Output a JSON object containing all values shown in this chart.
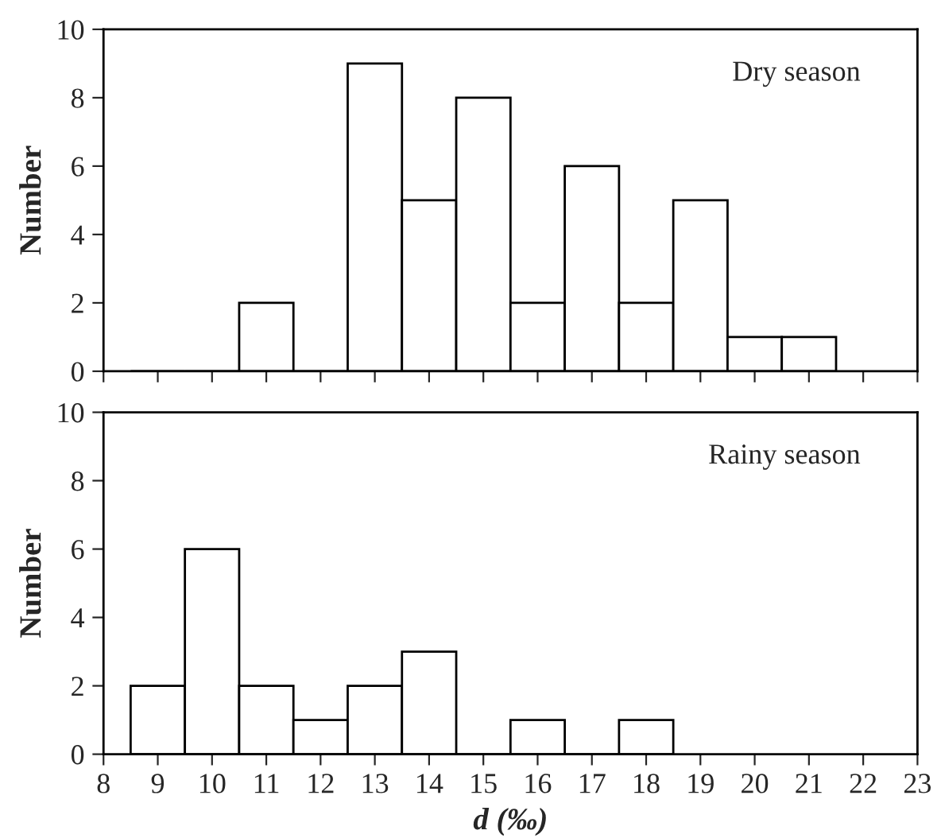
{
  "chart_data": [
    {
      "type": "histogram",
      "ylabel": "Number",
      "bins": [
        8.5,
        9.5,
        10.5,
        11.5,
        12.5,
        13.5,
        14.5,
        15.5,
        16.5,
        17.5,
        18.5,
        19.5,
        20.5,
        21.5
      ],
      "values": [
        0,
        0,
        2,
        0,
        9,
        5,
        8,
        2,
        6,
        2,
        5,
        1,
        1
      ],
      "color": "#ffffff",
      "xlim": [
        8,
        23
      ],
      "xticks": [
        8,
        9,
        10,
        11,
        12,
        13,
        14,
        15,
        16,
        17,
        18,
        19,
        20,
        21,
        22,
        23
      ],
      "ylim": [
        0,
        10
      ],
      "yticks": [
        0,
        2,
        4,
        6,
        8,
        10
      ],
      "tick_labels": "y",
      "annotations": [
        "Dry season"
      ]
    },
    {
      "type": "histogram",
      "ylabel": "Number",
      "xlabel": "d (‰)",
      "bins": [
        8.5,
        9.5,
        10.5,
        11.5,
        12.5,
        13.5,
        14.5,
        15.5,
        16.5,
        17.5,
        18.5
      ],
      "values": [
        2,
        6,
        2,
        1,
        2,
        3,
        0,
        1,
        0,
        1
      ],
      "color": "#ffffff",
      "xlim": [
        8,
        23
      ],
      "xticks": [
        8,
        9,
        10,
        11,
        12,
        13,
        14,
        15,
        16,
        17,
        18,
        19,
        20,
        21,
        22,
        23
      ],
      "ylim": [
        0,
        10
      ],
      "yticks": [
        0,
        2,
        4,
        6,
        8,
        10
      ],
      "annotations": [
        "Rainy season"
      ]
    }
  ]
}
